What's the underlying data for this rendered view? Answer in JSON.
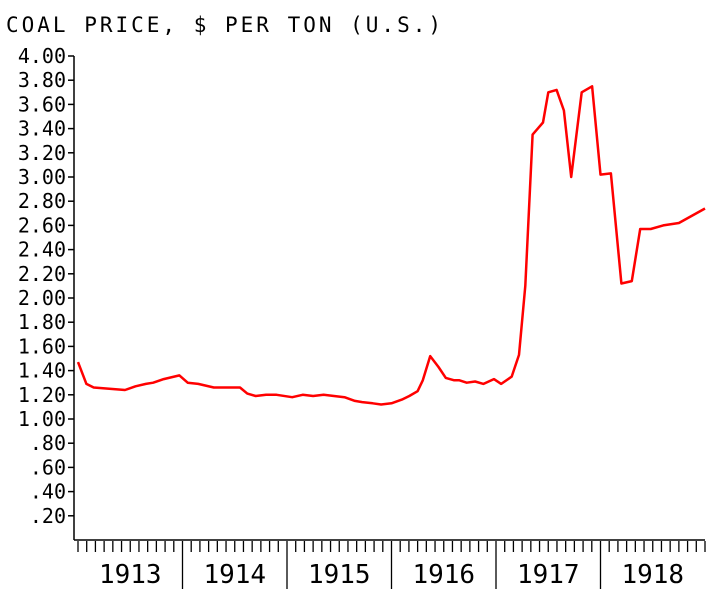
{
  "chart_data": {
    "type": "line",
    "title": "COAL PRICE, $ PER TON (U.S.)",
    "xlabel": "",
    "ylabel": "",
    "ylim": [
      0,
      4.0
    ],
    "xlim": [
      1913.0,
      1919.0
    ],
    "y_ticks": [
      "4.00",
      "3.80",
      "3.60",
      "3.40",
      "3.20",
      "3.00",
      "2.80",
      "2.60",
      "2.40",
      "2.20",
      "2.00",
      "1.80",
      "1.60",
      "1.40",
      "1.20",
      "1.00",
      ".80",
      ".60",
      ".40",
      ".20"
    ],
    "y_tick_values": [
      4.0,
      3.8,
      3.6,
      3.4,
      3.2,
      3.0,
      2.8,
      2.6,
      2.4,
      2.2,
      2.0,
      1.8,
      1.6,
      1.4,
      1.2,
      1.0,
      0.8,
      0.6,
      0.4,
      0.2
    ],
    "x_tick_labels": [
      "1913",
      "1914",
      "1915",
      "1916",
      "1917",
      "1918"
    ],
    "grid": false,
    "series": [
      {
        "color": "#ff0000",
        "x": [
          1913.0,
          1913.08,
          1913.15,
          1913.3,
          1913.45,
          1913.55,
          1913.65,
          1913.72,
          1913.82,
          1913.97,
          1914.05,
          1914.15,
          1914.3,
          1914.4,
          1914.48,
          1914.55,
          1914.62,
          1914.7,
          1914.8,
          1914.9,
          1915.05,
          1915.15,
          1915.25,
          1915.35,
          1915.45,
          1915.55,
          1915.65,
          1915.72,
          1915.82,
          1915.9,
          1916.0,
          1916.1,
          1916.17,
          1916.25,
          1916.3,
          1916.37,
          1916.45,
          1916.52,
          1916.6,
          1916.65,
          1916.72,
          1916.8,
          1916.88,
          1916.98,
          1917.05,
          1917.15,
          1917.22,
          1917.28,
          1917.35,
          1917.45,
          1917.5,
          1917.58,
          1917.65,
          1917.72,
          1917.82,
          1917.92,
          1918.0,
          1918.1,
          1918.2,
          1918.3,
          1918.38,
          1918.48,
          1918.6,
          1918.75,
          1919.0
        ],
        "y": [
          1.47,
          1.29,
          1.26,
          1.25,
          1.24,
          1.27,
          1.29,
          1.3,
          1.33,
          1.36,
          1.3,
          1.29,
          1.26,
          1.26,
          1.26,
          1.26,
          1.21,
          1.19,
          1.2,
          1.2,
          1.18,
          1.2,
          1.19,
          1.2,
          1.19,
          1.18,
          1.15,
          1.14,
          1.13,
          1.12,
          1.13,
          1.16,
          1.19,
          1.23,
          1.32,
          1.52,
          1.43,
          1.34,
          1.32,
          1.32,
          1.3,
          1.31,
          1.29,
          1.33,
          1.29,
          1.35,
          1.53,
          2.1,
          3.35,
          3.45,
          3.7,
          3.72,
          3.55,
          3.0,
          3.7,
          3.75,
          3.02,
          3.03,
          2.12,
          2.14,
          2.57,
          2.57,
          2.6,
          2.62,
          2.74
        ]
      }
    ]
  }
}
